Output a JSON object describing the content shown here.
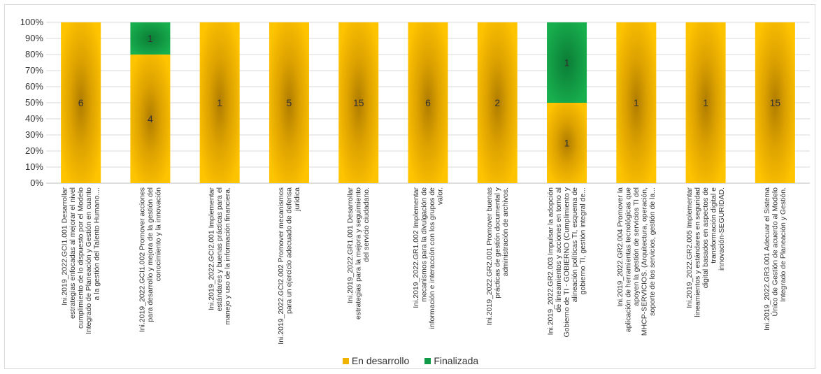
{
  "chart_data": {
    "type": "bar",
    "stacked": "percent",
    "grid": true,
    "legend_position": "bottom",
    "ylim": [
      0,
      100
    ],
    "y_ticks": [
      "0%",
      "10%",
      "20%",
      "30%",
      "40%",
      "50%",
      "60%",
      "70%",
      "80%",
      "90%",
      "100%"
    ],
    "categories": [
      "Ini.2019_2022.GCI1.001 Desarrollar estrategias enfocadas al mejorar el nivel cumplimiento de lo dispuesto por el Modelo Integrado de Planeación y Gestión en cuanto a la gestión del Talento Humano....",
      "Ini.2019_2022.GCI1.002 Promover acciones para desarrollo y mejora de la gestión del conocimiento y la innovación",
      "Ini.2019_2022.GCI2.001 Implementar estándares y buenas prácticas para el manejo y uso de la información financiera.",
      "Ini.2019_2022.GCI2.002 Promover mecanismos para un ejercicio adecuado de defensa jurídica",
      "Ini.2019_2022.GR1.001 Desarrollar estrategias para la mejora y seguimiento del servicio ciudadano.",
      "Ini.2019_2022.GR1.002 Implementar mecanismos para la divulgación de información e interacción con los grupos de valor.",
      "Ini.2019_2022.GR2.001 Promover buenas prácticas de gestión documental y administración de archivos.",
      "Ini.2019_2022.GR2.003 Impulsar la adopción de lineamientos y acciones en torno al Gobierno de TI - GOBIERNO (Cumplimiento y alineación políticas TI, esquema de gobierno TI, gestión integral de...",
      "Ini.2019_2022.GR2.004 Promover la aplicación de herramientas tecnológicas que apoyen la gestión de servicios TI del MHCP-SERVICIOS. (Arquitectura, operación, soporte de los servicios, gestión de la...",
      "Ini.2019_2022.GR2.005 Implementar lineamientos y estándares en seguridad digital basados en aspectos de transformación digital e innovación-SEGURIDAD.",
      "Ini.2019_2022.GR3.001 Adecuar el Sistema Único de Gestión de acuerdo al Modelo Integrado de Planeación y Gestión."
    ],
    "series": [
      {
        "name": "En desarrollo",
        "color": "#f0b400",
        "values": [
          6,
          4,
          1,
          5,
          15,
          6,
          2,
          1,
          1,
          1,
          15
        ]
      },
      {
        "name": "Finalizada",
        "color": "#0f9a48",
        "values": [
          0,
          1,
          0,
          0,
          0,
          0,
          0,
          1,
          0,
          0,
          0
        ]
      }
    ]
  }
}
